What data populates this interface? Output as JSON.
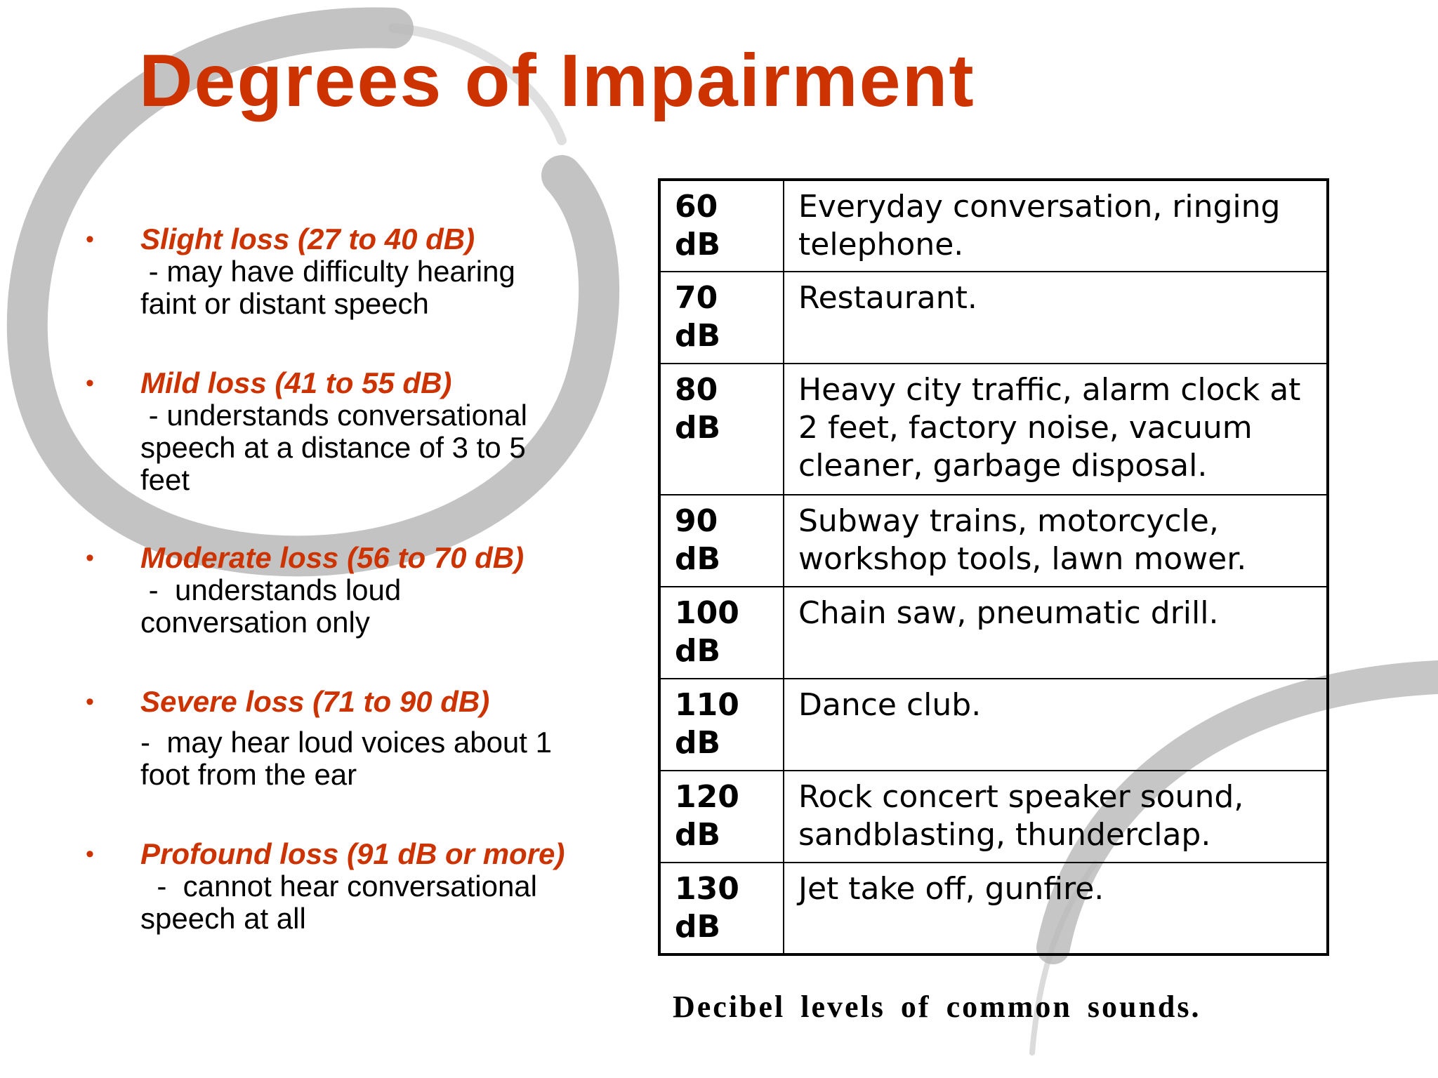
{
  "slide": {
    "title": "Degrees of Impairment",
    "colors": {
      "title": "#CC3300",
      "bullet_heading": "#CC3300",
      "body_text": "#000000",
      "brush_stroke": "#B8B8B8",
      "background": "#FFFFFF"
    },
    "decoration": "grey-brush-circle",
    "bullets": [
      {
        "marker": "•",
        "heading": "Slight loss (27 to 40 dB)",
        "lines": [
          " - may have difficulty hearing",
          "faint or distant speech"
        ]
      },
      {
        "marker": "•",
        "heading": "Mild loss (41 to 55 dB)",
        "lines": [
          " - understands conversational",
          "speech at a distance of 3 to 5",
          "feet"
        ]
      },
      {
        "marker": "•",
        "heading": "Moderate loss (56 to 70 dB)",
        "lines": [
          " -  understands loud",
          "conversation only"
        ]
      },
      {
        "marker": "•",
        "heading": "Severe loss (71 to 90 dB)",
        "lines": [
          "-  may hear loud voices about 1",
          "foot from the ear"
        ]
      },
      {
        "marker": "•",
        "heading": "Profound loss (91 dB or more)",
        "lines": [
          "  -  cannot hear conversational",
          "speech at all"
        ]
      }
    ],
    "table": {
      "rows": [
        {
          "level": [
            "60",
            "dB"
          ],
          "description": [
            "Everyday conversation, ringing",
            "telephone."
          ]
        },
        {
          "level": [
            "70",
            "dB"
          ],
          "description": [
            "Restaurant."
          ]
        },
        {
          "level": [
            "80",
            "dB"
          ],
          "description": [
            "Heavy city traffic, alarm clock at",
            "2 feet, factory noise, vacuum",
            "cleaner, garbage disposal."
          ]
        },
        {
          "level": [
            "90",
            "dB"
          ],
          "description": [
            "Subway trains, motorcycle,",
            "workshop tools, lawn mower."
          ]
        },
        {
          "level": [
            "100",
            "dB"
          ],
          "description": [
            "Chain saw, pneumatic drill."
          ]
        },
        {
          "level": [
            "110",
            "dB"
          ],
          "description": [
            "Dance club."
          ]
        },
        {
          "level": [
            "120",
            "dB"
          ],
          "description": [
            "Rock concert speaker sound,",
            "sandblasting, thunderclap."
          ]
        },
        {
          "level": [
            "130",
            "dB"
          ],
          "description": [
            "Jet take off, gunfire."
          ]
        }
      ],
      "caption": "Decibel levels of common sounds."
    }
  }
}
